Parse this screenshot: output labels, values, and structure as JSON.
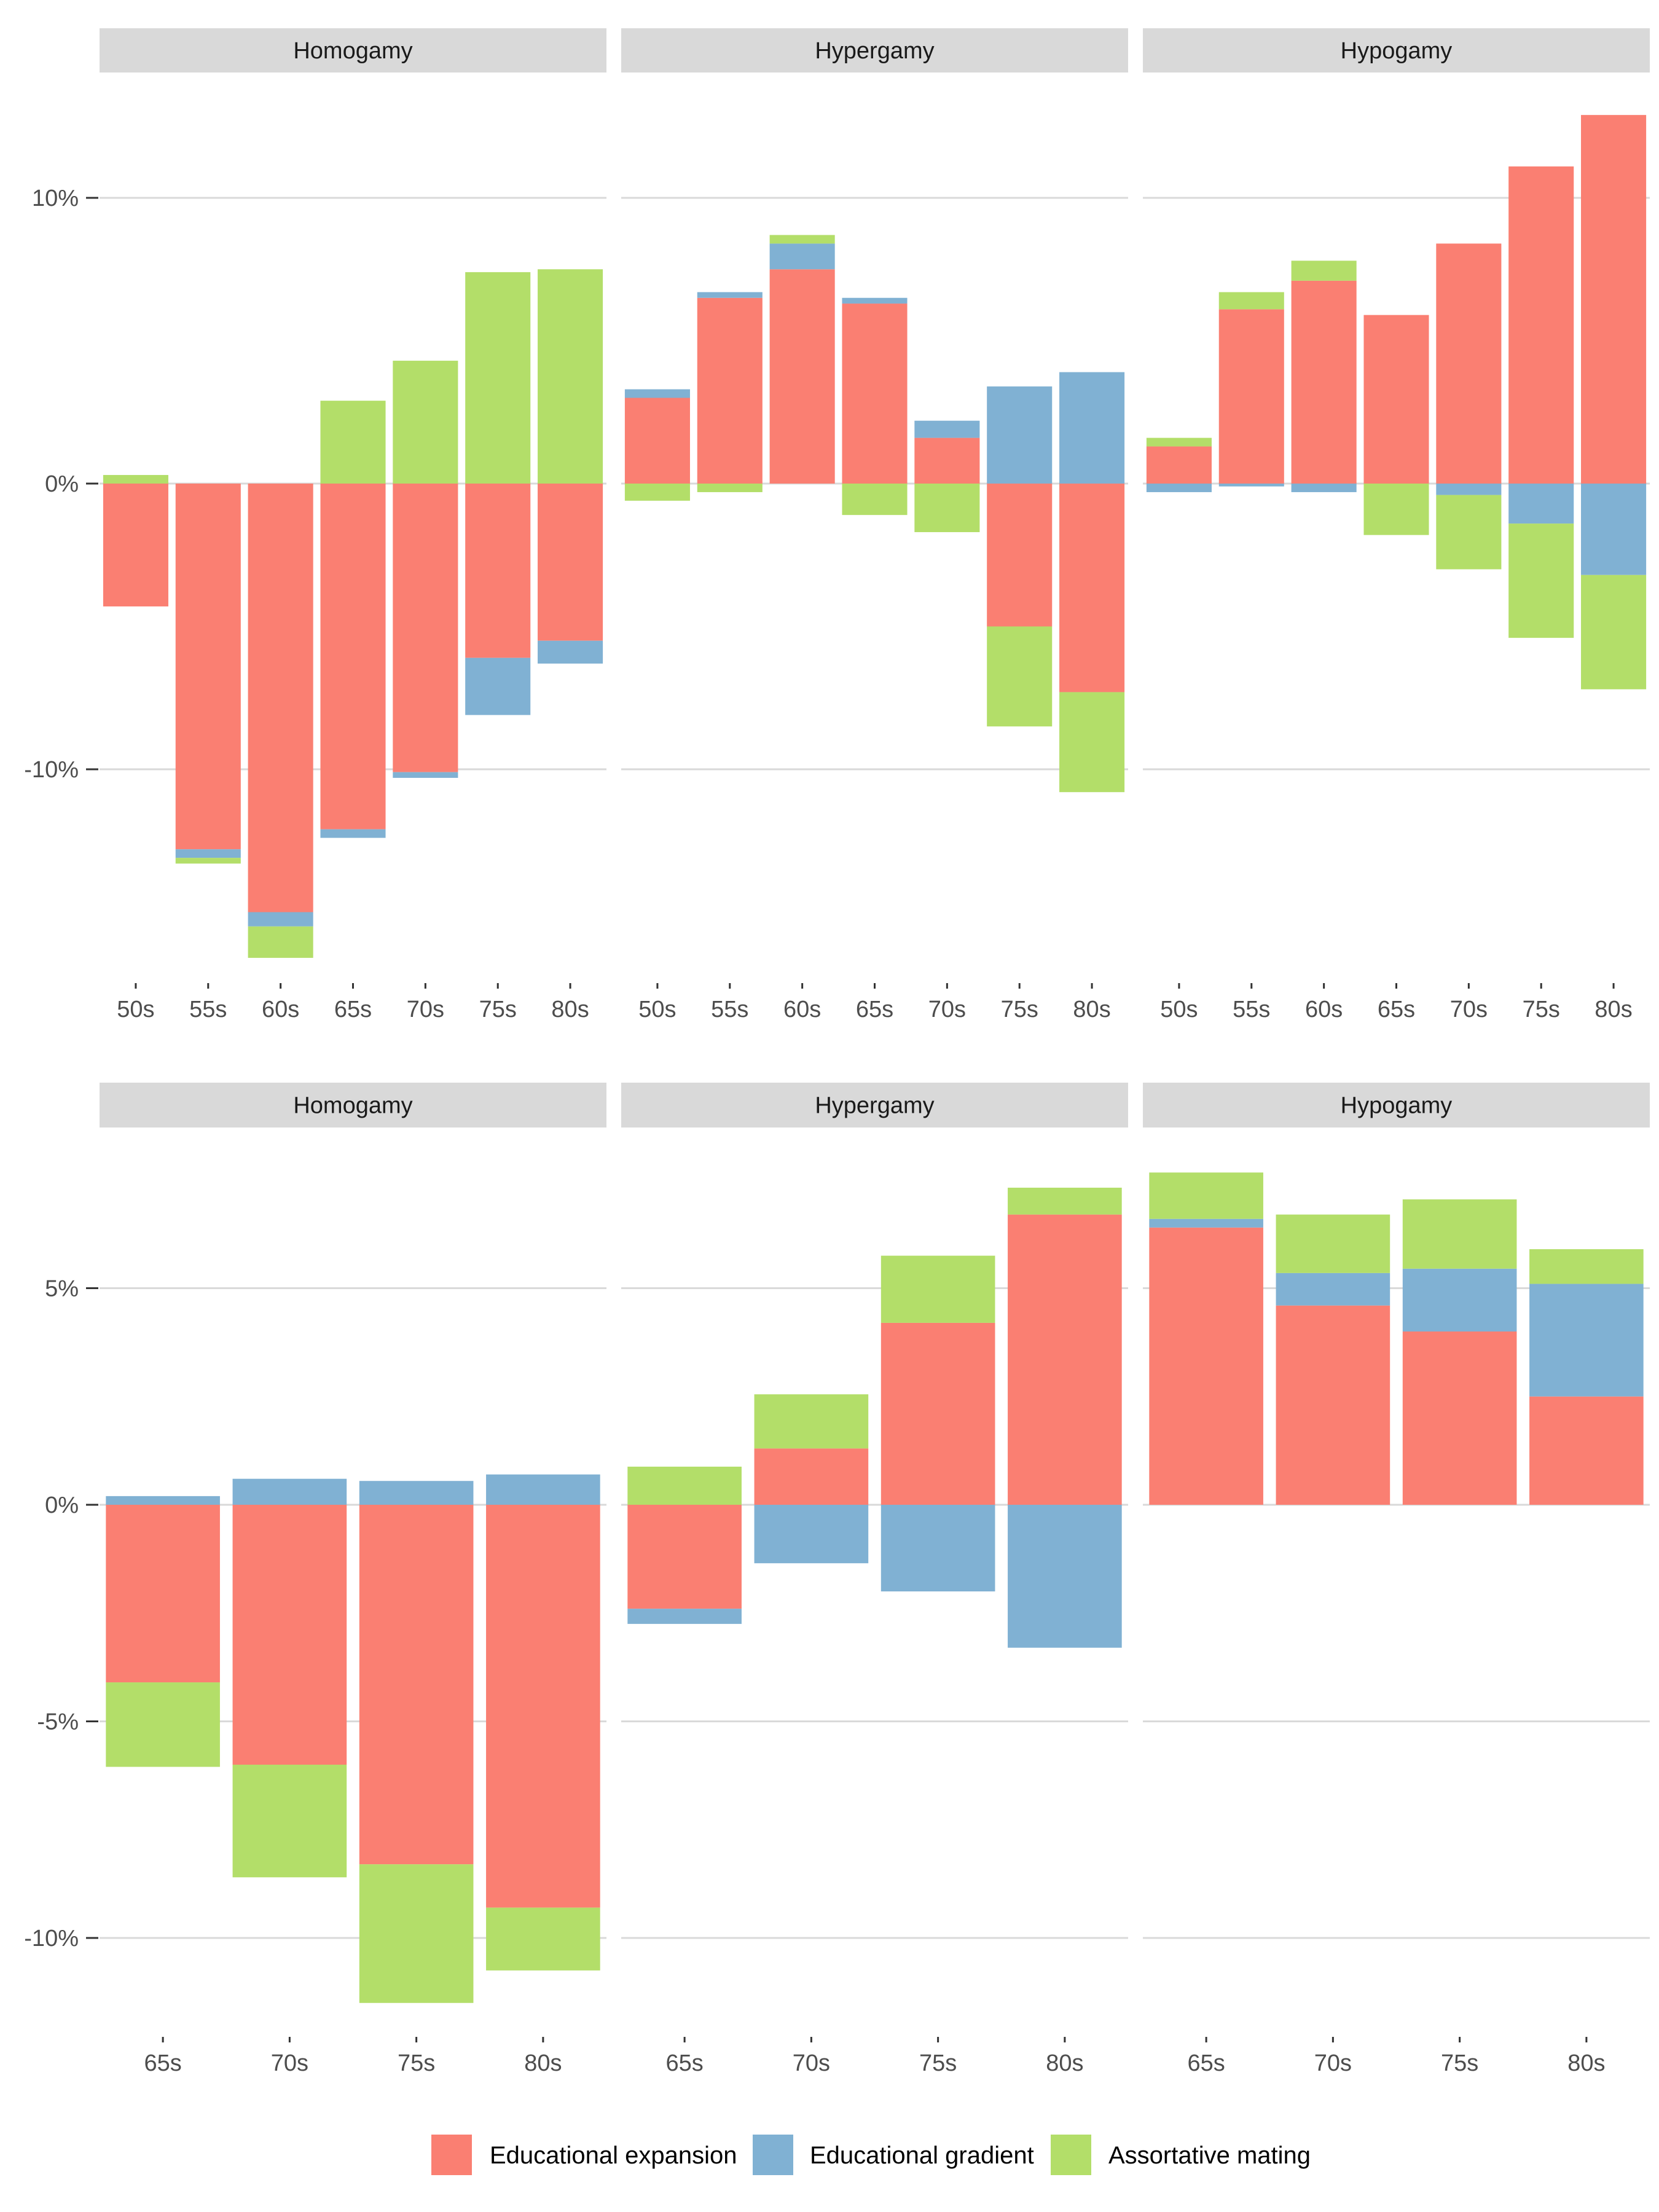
{
  "colors": {
    "educational_expansion": "#FA7F72",
    "educational_gradient": "#80B1D3",
    "assortative_mating": "#B3DE69",
    "strip_bg": "#D9D9D9",
    "grid": "#D9D9D9"
  },
  "legend": {
    "items": [
      {
        "label": "Educational expansion",
        "color": "#FA7F72"
      },
      {
        "label": "Educational gradient",
        "color": "#80B1D3"
      },
      {
        "label": "Assortative mating",
        "color": "#B3DE69"
      }
    ]
  },
  "chart_data": [
    {
      "type": "bar",
      "stacked": true,
      "facets": [
        "Homogamy",
        "Hypergamy",
        "Hypogamy"
      ],
      "categories": [
        "50s",
        "55s",
        "60s",
        "65s",
        "70s",
        "75s",
        "80s"
      ],
      "y_ticks": [
        {
          "value": 10,
          "label": "10%"
        },
        {
          "value": 0,
          "label": "0%"
        },
        {
          "value": -10,
          "label": "-10%"
        }
      ],
      "ylim": [
        -17,
        14
      ],
      "grid": true,
      "legend_position": "bottom",
      "panels": [
        {
          "facet": "Homogamy",
          "series": [
            {
              "name": "Educational expansion",
              "values": [
                -4.3,
                -12.8,
                -15.0,
                -12.1,
                -10.1,
                -6.1,
                -5.5
              ]
            },
            {
              "name": "Educational gradient",
              "values": [
                0,
                -0.3,
                -0.5,
                -0.3,
                -0.2,
                -2.0,
                -0.8
              ]
            },
            {
              "name": "Assortative mating",
              "values": [
                0.3,
                -0.2,
                -1.1,
                2.9,
                4.3,
                7.4,
                7.5
              ]
            }
          ]
        },
        {
          "facet": "Hypergamy",
          "series": [
            {
              "name": "Educational expansion",
              "values": [
                3.0,
                6.5,
                7.5,
                6.3,
                1.6,
                -5.0,
                -7.3
              ]
            },
            {
              "name": "Educational gradient",
              "values": [
                0.3,
                0.2,
                0.9,
                0.2,
                0.6,
                3.4,
                3.9
              ]
            },
            {
              "name": "Assortative mating",
              "values": [
                -0.6,
                -0.3,
                0.3,
                -1.1,
                -1.7,
                -3.5,
                -3.5
              ]
            }
          ]
        },
        {
          "facet": "Hypogamy",
          "series": [
            {
              "name": "Educational expansion",
              "values": [
                1.3,
                6.1,
                7.1,
                5.9,
                8.4,
                11.1,
                12.9
              ]
            },
            {
              "name": "Educational gradient",
              "values": [
                -0.3,
                -0.1,
                -0.3,
                0,
                -0.4,
                -1.4,
                -3.2
              ]
            },
            {
              "name": "Assortative mating",
              "values": [
                0.3,
                0.6,
                0.7,
                -1.8,
                -2.6,
                -4.0,
                -4.0
              ]
            }
          ]
        }
      ]
    },
    {
      "type": "bar",
      "stacked": true,
      "facets": [
        "Homogamy",
        "Hypergamy",
        "Hypogamy"
      ],
      "categories": [
        "65s",
        "70s",
        "75s",
        "80s"
      ],
      "y_ticks": [
        {
          "value": 5,
          "label": "5%"
        },
        {
          "value": 0,
          "label": "0%"
        },
        {
          "value": -5,
          "label": "-5%"
        },
        {
          "value": -10,
          "label": "-10%"
        }
      ],
      "ylim": [
        -12,
        8
      ],
      "grid": true,
      "legend_position": "bottom",
      "panels": [
        {
          "facet": "Homogamy",
          "series": [
            {
              "name": "Educational expansion",
              "values": [
                -4.1,
                -6.0,
                -8.3,
                -9.3
              ]
            },
            {
              "name": "Educational gradient",
              "values": [
                0.2,
                0.6,
                0.55,
                0.7
              ]
            },
            {
              "name": "Assortative mating",
              "values": [
                -1.95,
                -2.6,
                -3.2,
                -1.45
              ]
            }
          ]
        },
        {
          "facet": "Hypergamy",
          "series": [
            {
              "name": "Educational expansion",
              "values": [
                -2.4,
                1.3,
                4.2,
                6.7
              ]
            },
            {
              "name": "Educational gradient",
              "values": [
                -0.35,
                -1.35,
                -2.0,
                -3.3
              ]
            },
            {
              "name": "Assortative mating",
              "values": [
                0.88,
                1.25,
                1.55,
                0.62
              ]
            }
          ]
        },
        {
          "facet": "Hypogamy",
          "series": [
            {
              "name": "Educational expansion",
              "values": [
                6.4,
                4.6,
                4.0,
                2.5
              ]
            },
            {
              "name": "Educational gradient",
              "values": [
                0.2,
                0.75,
                1.45,
                2.6
              ]
            },
            {
              "name": "Assortative mating",
              "values": [
                1.07,
                1.35,
                1.6,
                0.8
              ]
            }
          ]
        }
      ]
    }
  ]
}
